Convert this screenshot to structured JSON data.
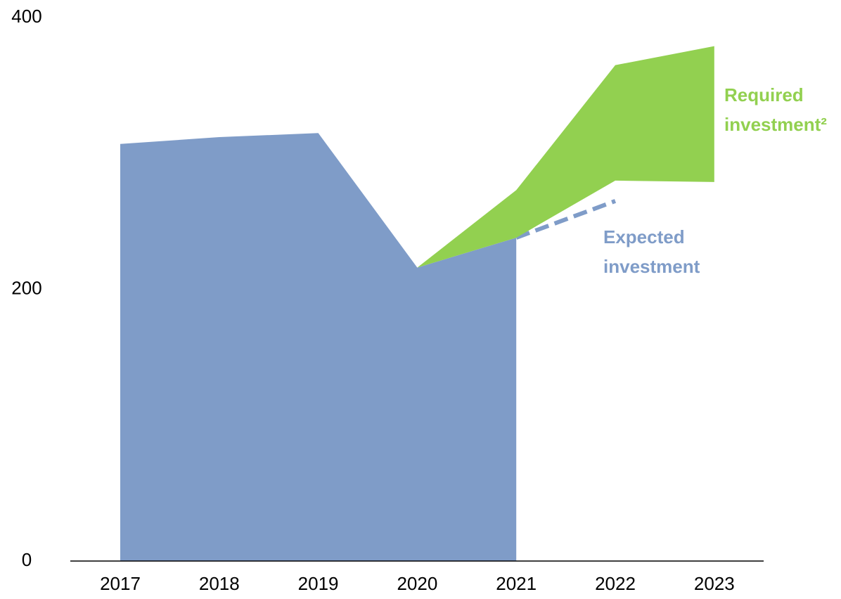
{
  "chart_data": {
    "type": "area",
    "categories": [
      "2017",
      "2018",
      "2019",
      "2020",
      "2021",
      "2022",
      "2023"
    ],
    "ylim": [
      0,
      400
    ],
    "yticks": [
      0,
      200,
      400
    ],
    "grid": false,
    "series": [
      {
        "color": "#7f9cc8",
        "values": [
          307,
          312,
          315,
          216,
          238,
          null,
          null
        ]
      },
      {
        "name": "Expected investment",
        "color": "#7f9cc8",
        "style": "dashed",
        "values": [
          null,
          null,
          null,
          null,
          238,
          265,
          null
        ]
      },
      {
        "name": "Required investment²",
        "color": "#92d050",
        "low": [
          null,
          null,
          null,
          216,
          238,
          280,
          279
        ],
        "high": [
          null,
          null,
          null,
          216,
          273,
          365,
          379
        ]
      }
    ]
  }
}
